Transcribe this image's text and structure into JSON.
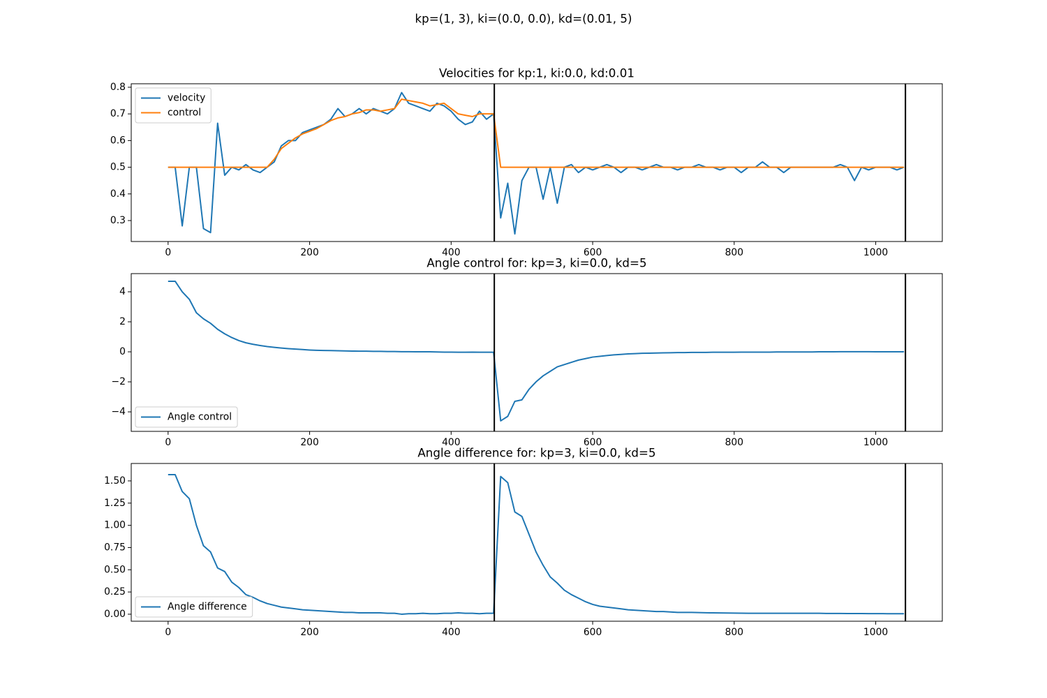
{
  "title": "kp=(1, 3), ki=(0.0, 0.0), kd=(0.01, 5)",
  "chart_data": [
    {
      "type": "line",
      "title": "Velocities for kp:1, ki:0.0, kd:0.01",
      "legend": "upper left",
      "x": [
        0,
        10,
        20,
        30,
        40,
        50,
        60,
        70,
        80,
        90,
        100,
        110,
        120,
        130,
        140,
        150,
        160,
        170,
        180,
        190,
        200,
        210,
        220,
        230,
        240,
        250,
        260,
        270,
        280,
        290,
        300,
        310,
        320,
        330,
        340,
        350,
        360,
        370,
        380,
        390,
        400,
        410,
        420,
        430,
        440,
        450,
        460,
        470,
        480,
        490,
        500,
        510,
        520,
        530,
        540,
        550,
        560,
        570,
        580,
        590,
        600,
        610,
        620,
        630,
        640,
        650,
        660,
        670,
        680,
        690,
        700,
        710,
        720,
        730,
        740,
        750,
        760,
        770,
        780,
        790,
        800,
        810,
        820,
        830,
        840,
        850,
        860,
        870,
        880,
        890,
        900,
        910,
        920,
        930,
        940,
        950,
        960,
        970,
        980,
        990,
        1000,
        1010,
        1020,
        1030,
        1040
      ],
      "series": [
        {
          "name": "velocity",
          "color": "#1f77b4",
          "values": [
            0.5,
            0.5,
            0.28,
            0.5,
            0.5,
            0.27,
            0.255,
            0.665,
            0.47,
            0.5,
            0.49,
            0.51,
            0.49,
            0.48,
            0.5,
            0.52,
            0.58,
            0.6,
            0.6,
            0.63,
            0.64,
            0.65,
            0.66,
            0.68,
            0.72,
            0.69,
            0.7,
            0.72,
            0.7,
            0.72,
            0.71,
            0.7,
            0.72,
            0.78,
            0.74,
            0.73,
            0.72,
            0.71,
            0.74,
            0.73,
            0.71,
            0.68,
            0.66,
            0.67,
            0.71,
            0.68,
            0.7,
            0.31,
            0.44,
            0.25,
            0.45,
            0.5,
            0.5,
            0.38,
            0.5,
            0.365,
            0.5,
            0.51,
            0.48,
            0.5,
            0.49,
            0.5,
            0.51,
            0.5,
            0.48,
            0.5,
            0.5,
            0.49,
            0.5,
            0.51,
            0.5,
            0.5,
            0.49,
            0.5,
            0.5,
            0.51,
            0.5,
            0.5,
            0.49,
            0.5,
            0.5,
            0.48,
            0.5,
            0.5,
            0.52,
            0.5,
            0.5,
            0.48,
            0.5,
            0.5,
            0.5,
            0.5,
            0.5,
            0.5,
            0.5,
            0.51,
            0.5,
            0.45,
            0.5,
            0.49,
            0.5,
            0.5,
            0.5,
            0.49,
            0.5
          ]
        },
        {
          "name": "control",
          "color": "#ff7f0e",
          "values": [
            0.5,
            0.5,
            0.5,
            0.5,
            0.5,
            0.5,
            0.5,
            0.5,
            0.5,
            0.5,
            0.5,
            0.5,
            0.5,
            0.5,
            0.5,
            0.53,
            0.57,
            0.59,
            0.61,
            0.625,
            0.635,
            0.645,
            0.66,
            0.675,
            0.685,
            0.69,
            0.7,
            0.705,
            0.715,
            0.715,
            0.71,
            0.715,
            0.72,
            0.755,
            0.75,
            0.745,
            0.74,
            0.73,
            0.735,
            0.74,
            0.72,
            0.7,
            0.695,
            0.69,
            0.7,
            0.7,
            0.7,
            0.5,
            0.5,
            0.5,
            0.5,
            0.5,
            0.5,
            0.5,
            0.5,
            0.5,
            0.5,
            0.5,
            0.5,
            0.5,
            0.5,
            0.5,
            0.5,
            0.5,
            0.5,
            0.5,
            0.5,
            0.5,
            0.5,
            0.5,
            0.5,
            0.5,
            0.5,
            0.5,
            0.5,
            0.5,
            0.5,
            0.5,
            0.5,
            0.5,
            0.5,
            0.5,
            0.5,
            0.5,
            0.5,
            0.5,
            0.5,
            0.5,
            0.5,
            0.5,
            0.5,
            0.5,
            0.5,
            0.5,
            0.5,
            0.5,
            0.5,
            0.5,
            0.5,
            0.5,
            0.5,
            0.5,
            0.5,
            0.5,
            0.5
          ]
        }
      ],
      "vlines": [
        461,
        1042
      ],
      "vline_color": "#000000",
      "xlim": [
        -52.1,
        1094.1
      ],
      "xticks": [
        0,
        200,
        400,
        600,
        800,
        1000
      ],
      "ylim": [
        0.2215,
        0.813
      ],
      "yticks": [
        0.3,
        0.4,
        0.5,
        0.6,
        0.7,
        0.8
      ]
    },
    {
      "type": "line",
      "title": "Angle control for: kp=3, ki=0.0, kd=5",
      "legend": "lower left",
      "x": [
        0,
        10,
        20,
        30,
        40,
        50,
        60,
        70,
        80,
        90,
        100,
        110,
        120,
        130,
        140,
        150,
        160,
        170,
        180,
        190,
        200,
        210,
        220,
        230,
        240,
        250,
        260,
        270,
        280,
        290,
        300,
        310,
        320,
        330,
        340,
        350,
        360,
        370,
        380,
        390,
        400,
        410,
        420,
        430,
        440,
        450,
        460,
        470,
        480,
        490,
        500,
        510,
        520,
        530,
        540,
        550,
        560,
        570,
        580,
        590,
        600,
        610,
        620,
        630,
        640,
        650,
        660,
        670,
        680,
        690,
        700,
        710,
        720,
        730,
        740,
        750,
        760,
        770,
        780,
        790,
        800,
        810,
        820,
        830,
        840,
        850,
        860,
        870,
        880,
        890,
        900,
        910,
        920,
        930,
        940,
        950,
        960,
        970,
        980,
        990,
        1000,
        1010,
        1020,
        1030,
        1040
      ],
      "series": [
        {
          "name": "Angle control",
          "color": "#1f77b4",
          "values": [
            4.7,
            4.7,
            4.0,
            3.5,
            2.6,
            2.2,
            1.9,
            1.5,
            1.2,
            0.95,
            0.75,
            0.6,
            0.5,
            0.42,
            0.35,
            0.3,
            0.25,
            0.21,
            0.18,
            0.15,
            0.12,
            0.1,
            0.09,
            0.08,
            0.07,
            0.06,
            0.05,
            0.04,
            0.04,
            0.03,
            0.03,
            0.02,
            0.02,
            0.01,
            0.01,
            0,
            0,
            0,
            -0.01,
            -0.02,
            -0.02,
            -0.03,
            -0.03,
            -0.02,
            -0.03,
            -0.03,
            -0.03,
            -4.6,
            -4.3,
            -3.3,
            -3.2,
            -2.5,
            -2.0,
            -1.6,
            -1.3,
            -1.0,
            -0.85,
            -0.7,
            -0.55,
            -0.45,
            -0.35,
            -0.3,
            -0.25,
            -0.2,
            -0.17,
            -0.14,
            -0.12,
            -0.1,
            -0.09,
            -0.08,
            -0.07,
            -0.06,
            -0.05,
            -0.05,
            -0.04,
            -0.04,
            -0.04,
            -0.03,
            -0.03,
            -0.03,
            -0.03,
            -0.02,
            -0.02,
            -0.02,
            -0.02,
            -0.02,
            -0.01,
            -0.01,
            -0.01,
            -0.01,
            -0.01,
            -0.01,
            0,
            0,
            0,
            0.01,
            0.01,
            0.01,
            0.01,
            0.01,
            0,
            0,
            0,
            0,
            0
          ]
        }
      ],
      "vlines": [
        461,
        1042
      ],
      "vline_color": "#000000",
      "xlim": [
        -52.1,
        1094.1
      ],
      "xticks": [
        0,
        200,
        400,
        600,
        800,
        1000
      ],
      "ylim": [
        -5.3,
        5.21
      ],
      "yticks": [
        {
          "value": -4,
          "label": "−4"
        },
        {
          "value": -2,
          "label": "−2"
        },
        0,
        2,
        4
      ]
    },
    {
      "type": "line",
      "title": "Angle difference for: kp=3, ki=0.0, kd=5",
      "legend": "lower left",
      "x": [
        0,
        10,
        20,
        30,
        40,
        50,
        60,
        70,
        80,
        90,
        100,
        110,
        120,
        130,
        140,
        150,
        160,
        170,
        180,
        190,
        200,
        210,
        220,
        230,
        240,
        250,
        260,
        270,
        280,
        290,
        300,
        310,
        320,
        330,
        340,
        350,
        360,
        370,
        380,
        390,
        400,
        410,
        420,
        430,
        440,
        450,
        460,
        470,
        480,
        490,
        500,
        510,
        520,
        530,
        540,
        550,
        560,
        570,
        580,
        590,
        600,
        610,
        620,
        630,
        640,
        650,
        660,
        670,
        680,
        690,
        700,
        710,
        720,
        730,
        740,
        750,
        760,
        770,
        780,
        790,
        800,
        810,
        820,
        830,
        840,
        850,
        860,
        870,
        880,
        890,
        900,
        910,
        920,
        930,
        940,
        950,
        960,
        970,
        980,
        990,
        1000,
        1010,
        1020,
        1030,
        1040
      ],
      "series": [
        {
          "name": "Angle difference",
          "color": "#1f77b4",
          "values": [
            1.57,
            1.57,
            1.38,
            1.3,
            1.0,
            0.77,
            0.7,
            0.52,
            0.48,
            0.36,
            0.3,
            0.22,
            0.19,
            0.15,
            0.12,
            0.1,
            0.08,
            0.07,
            0.06,
            0.05,
            0.045,
            0.04,
            0.035,
            0.03,
            0.025,
            0.02,
            0.02,
            0.015,
            0.015,
            0.015,
            0.015,
            0.01,
            0.01,
            0.0,
            0.005,
            0.005,
            0.01,
            0.005,
            0.005,
            0.01,
            0.01,
            0.015,
            0.01,
            0.01,
            0.005,
            0.01,
            0.01,
            1.55,
            1.48,
            1.15,
            1.1,
            0.9,
            0.7,
            0.55,
            0.42,
            0.35,
            0.27,
            0.22,
            0.18,
            0.14,
            0.11,
            0.09,
            0.08,
            0.07,
            0.06,
            0.05,
            0.045,
            0.04,
            0.035,
            0.03,
            0.03,
            0.025,
            0.02,
            0.02,
            0.02,
            0.018,
            0.016,
            0.015,
            0.014,
            0.013,
            0.012,
            0.011,
            0.01,
            0.01,
            0.01,
            0.01,
            0.01,
            0.01,
            0.01,
            0.01,
            0.01,
            0.01,
            0.01,
            0.008,
            0.008,
            0.008,
            0.007,
            0.007,
            0.007,
            0.006,
            0.006,
            0.006,
            0.005,
            0.005,
            0.005
          ]
        }
      ],
      "vlines": [
        461,
        1042
      ],
      "vline_color": "#000000",
      "xlim": [
        -52.1,
        1094.1
      ],
      "xticks": [
        0,
        200,
        400,
        600,
        800,
        1000
      ],
      "ylim": [
        -0.079,
        1.696
      ],
      "yticks": [
        {
          "value": 0,
          "label": "0.00"
        },
        {
          "value": 0.25,
          "label": "0.25"
        },
        {
          "value": 0.5,
          "label": "0.50"
        },
        {
          "value": 0.75,
          "label": "0.75"
        },
        {
          "value": 1,
          "label": "1.00"
        },
        {
          "value": 1.25,
          "label": "1.25"
        },
        {
          "value": 1.5,
          "label": "1.50"
        }
      ]
    }
  ]
}
